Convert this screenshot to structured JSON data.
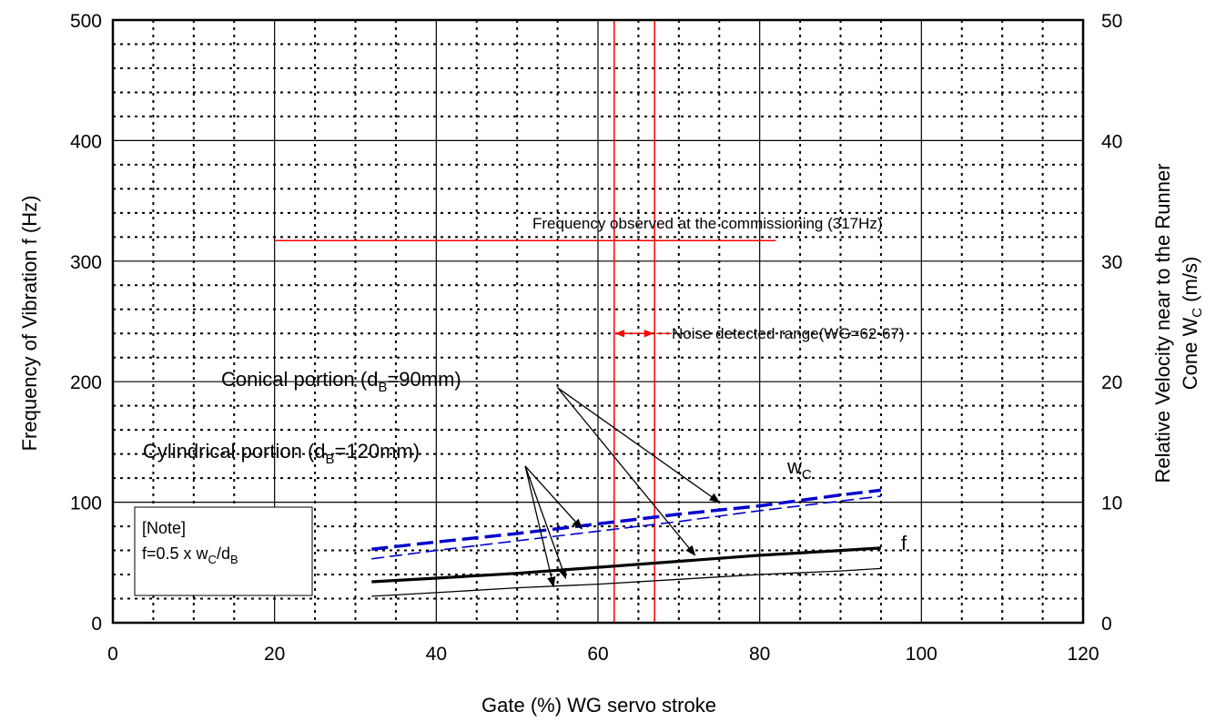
{
  "chart_data": {
    "type": "line",
    "xlabel": "Gate (%) WG servo stroke",
    "ylabel": "Frequency of Vibration f (Hz)",
    "y2label_line1": "Relative Velocity near to the Runner",
    "y2label_line2_prefix": "Cone W",
    "y2label_line2_sub": "C",
    "y2label_line2_suffix": " (m/s)",
    "xlim": [
      0,
      120
    ],
    "ylim": [
      0,
      500
    ],
    "y2lim": [
      0,
      50
    ],
    "xticks": [
      "0",
      "20",
      "40",
      "60",
      "80",
      "100",
      "120"
    ],
    "yticks": [
      "0",
      "100",
      "200",
      "300",
      "400",
      "500"
    ],
    "y2ticks": [
      "0",
      "10",
      "20",
      "30",
      "40",
      "50"
    ],
    "grid": true,
    "series": [
      {
        "name": "wc_conical",
        "axis": "right",
        "color": "#0000cc",
        "style": "dashed-thick",
        "x": [
          32,
          40,
          50,
          60,
          70,
          80,
          90,
          95
        ],
        "values": [
          6.1,
          6.7,
          7.4,
          8.2,
          9.0,
          9.7,
          10.6,
          11.0
        ]
      },
      {
        "name": "wc_cylindrical",
        "axis": "right",
        "color": "#0000cc",
        "style": "dashed-thin",
        "x": [
          32,
          40,
          50,
          60,
          70,
          80,
          90,
          95
        ],
        "values": [
          5.3,
          6.0,
          6.8,
          7.6,
          8.4,
          9.3,
          10.1,
          10.5
        ]
      },
      {
        "name": "f_conical",
        "axis": "left",
        "color": "#000000",
        "style": "solid-thick",
        "x": [
          32,
          40,
          50,
          60,
          70,
          80,
          90,
          95
        ],
        "values": [
          34,
          37,
          41,
          46,
          51,
          56,
          60,
          62
        ]
      },
      {
        "name": "f_cylindrical",
        "axis": "left",
        "color": "#000000",
        "style": "solid-thin",
        "x": [
          32,
          40,
          50,
          60,
          70,
          80,
          90,
          95
        ],
        "values": [
          22,
          25,
          29,
          32,
          36,
          40,
          43,
          45
        ]
      }
    ],
    "reference_lines": {
      "observed_freq": {
        "value": 317,
        "x_start": 20,
        "x_end": 82,
        "color": "#ff0000"
      },
      "noise_range": {
        "x_min": 62,
        "x_max": 67,
        "arrow_y": 240,
        "color": "#ff0000"
      }
    },
    "annotations": {
      "observed_label": "Frequency observed at the commissioning (317Hz)",
      "noise_label": "Noise detected range(WG=62-67)",
      "conical": {
        "prefix": "Conical portion (d",
        "sub": "B",
        "suffix": "=90mm)"
      },
      "cylindrical": {
        "prefix": "Cylindrical portion (d",
        "sub": "B",
        "suffix": "=120mm)"
      },
      "wc": {
        "main": "w",
        "sub": "C"
      },
      "f": "f",
      "note_title": "[Note]",
      "note_formula": {
        "p1": "f=0.5 x w",
        "s1": "C",
        "p2": "/d",
        "s2": "B"
      }
    },
    "pointer_arrows": [
      {
        "label": "conical",
        "from": [
          55,
          195
        ],
        "to": [
          75,
          100
        ]
      },
      {
        "label": "conical",
        "from": [
          55,
          195
        ],
        "to": [
          72,
          56
        ]
      },
      {
        "label": "cylindrical",
        "from": [
          51,
          130
        ],
        "to": [
          58,
          78
        ]
      },
      {
        "label": "cylindrical",
        "from": [
          51,
          130
        ],
        "to": [
          54.5,
          30
        ]
      },
      {
        "label": "cylindrical",
        "from": [
          51,
          130
        ],
        "to": [
          56,
          37
        ]
      }
    ]
  }
}
